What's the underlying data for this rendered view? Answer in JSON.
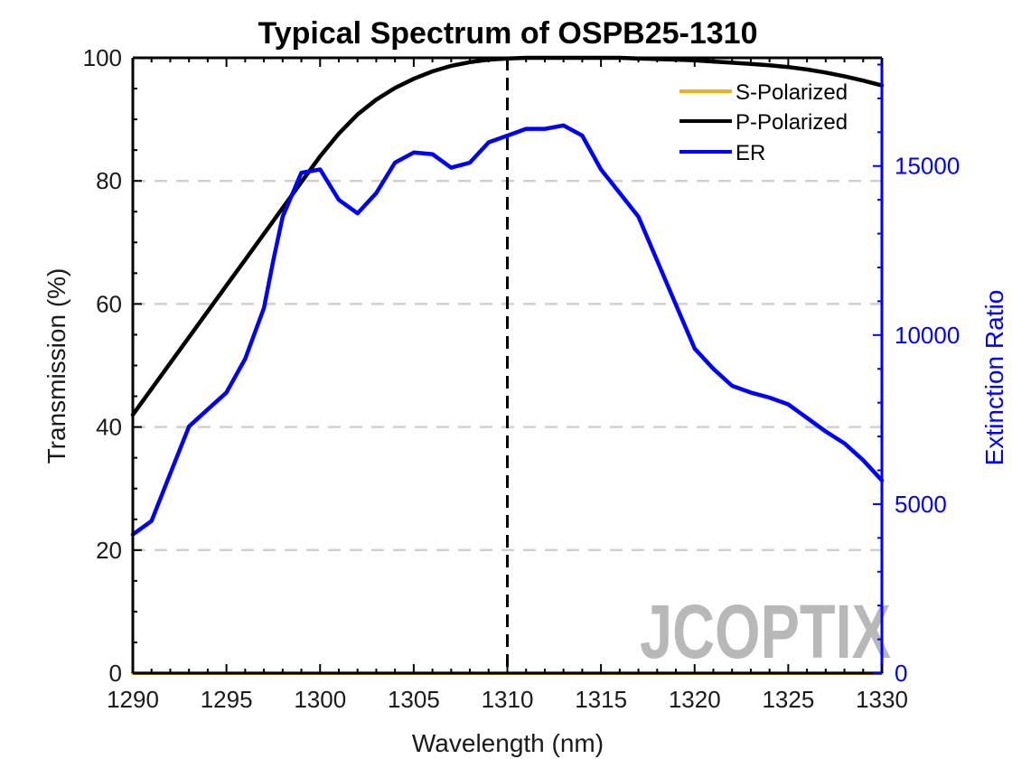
{
  "chart_data": {
    "type": "line",
    "title": "Typical Spectrum of OSPB25-1310",
    "xlabel": "Wavelength (nm)",
    "ylabel": "Transmission (%)",
    "y2label": "Extinction Ratio",
    "xlim": [
      1290,
      1330
    ],
    "ylim": [
      0,
      100
    ],
    "y2lim": [
      0,
      18200
    ],
    "xticks": [
      1290,
      1295,
      1300,
      1305,
      1310,
      1315,
      1320,
      1325,
      1330
    ],
    "yticks": [
      0,
      20,
      40,
      60,
      80,
      100
    ],
    "y2ticks": [
      0,
      5000,
      10000,
      15000
    ],
    "grid": "horizontal dashed",
    "legend_position": "top-right",
    "marker_line": {
      "x": 1310,
      "style": "dashed",
      "color": "#000000"
    },
    "series": [
      {
        "name": "S-Polarized",
        "axis": "left",
        "color": "#EDB120",
        "x": [
          1290,
          1330
        ],
        "y": [
          0,
          0
        ]
      },
      {
        "name": "P-Polarized",
        "axis": "left",
        "color": "#000000",
        "x": [
          1290,
          1291,
          1292,
          1293,
          1294,
          1295,
          1296,
          1297,
          1298,
          1299,
          1300,
          1301,
          1302,
          1303,
          1304,
          1305,
          1306,
          1307,
          1308,
          1309,
          1310,
          1311,
          1312,
          1313,
          1314,
          1315,
          1316,
          1317,
          1318,
          1319,
          1320,
          1321,
          1322,
          1323,
          1324,
          1325,
          1326,
          1327,
          1328,
          1329,
          1330
        ],
        "y": [
          42,
          46.2,
          50.4,
          54.6,
          58.8,
          63,
          67.2,
          71.4,
          75.6,
          79.8,
          84,
          87.7,
          90.8,
          93.2,
          95.1,
          96.6,
          97.8,
          98.7,
          99.3,
          99.7,
          99.9,
          100,
          100,
          100,
          100,
          100,
          100,
          99.9,
          99.8,
          99.7,
          99.6,
          99.4,
          99.2,
          99,
          98.8,
          98.5,
          98.1,
          97.6,
          97,
          96.3,
          95.5
        ]
      },
      {
        "name": "ER",
        "axis": "right",
        "color": "#0000FF",
        "x": [
          1290,
          1291,
          1292,
          1293,
          1294,
          1295,
          1296,
          1297,
          1297.5,
          1298,
          1299,
          1300,
          1301,
          1302,
          1303,
          1304,
          1305,
          1306,
          1307,
          1308,
          1309,
          1310,
          1311,
          1312,
          1313,
          1314,
          1315,
          1316,
          1317,
          1318,
          1319,
          1320,
          1321,
          1322,
          1323,
          1324,
          1325,
          1326,
          1327,
          1328,
          1329,
          1330
        ],
        "y": [
          4100,
          4500,
          5900,
          7300,
          7800,
          8300,
          9300,
          10800,
          12200,
          13500,
          14800,
          14900,
          14000,
          13600,
          14200,
          15100,
          15400,
          15350,
          14950,
          15100,
          15700,
          15900,
          16100,
          16100,
          16200,
          15900,
          14900,
          14200,
          13500,
          12200,
          10900,
          9600,
          9000,
          8500,
          8300,
          8150,
          7950,
          7550,
          7150,
          6800,
          6300,
          5700
        ]
      }
    ]
  },
  "watermark": "JCOPTIX",
  "colors": {
    "s_polarized": "#EDB120",
    "p_polarized": "#000000",
    "er": "#0000FF",
    "grid": "#d0d0d0",
    "watermark_accent": "#f4c9a8"
  }
}
